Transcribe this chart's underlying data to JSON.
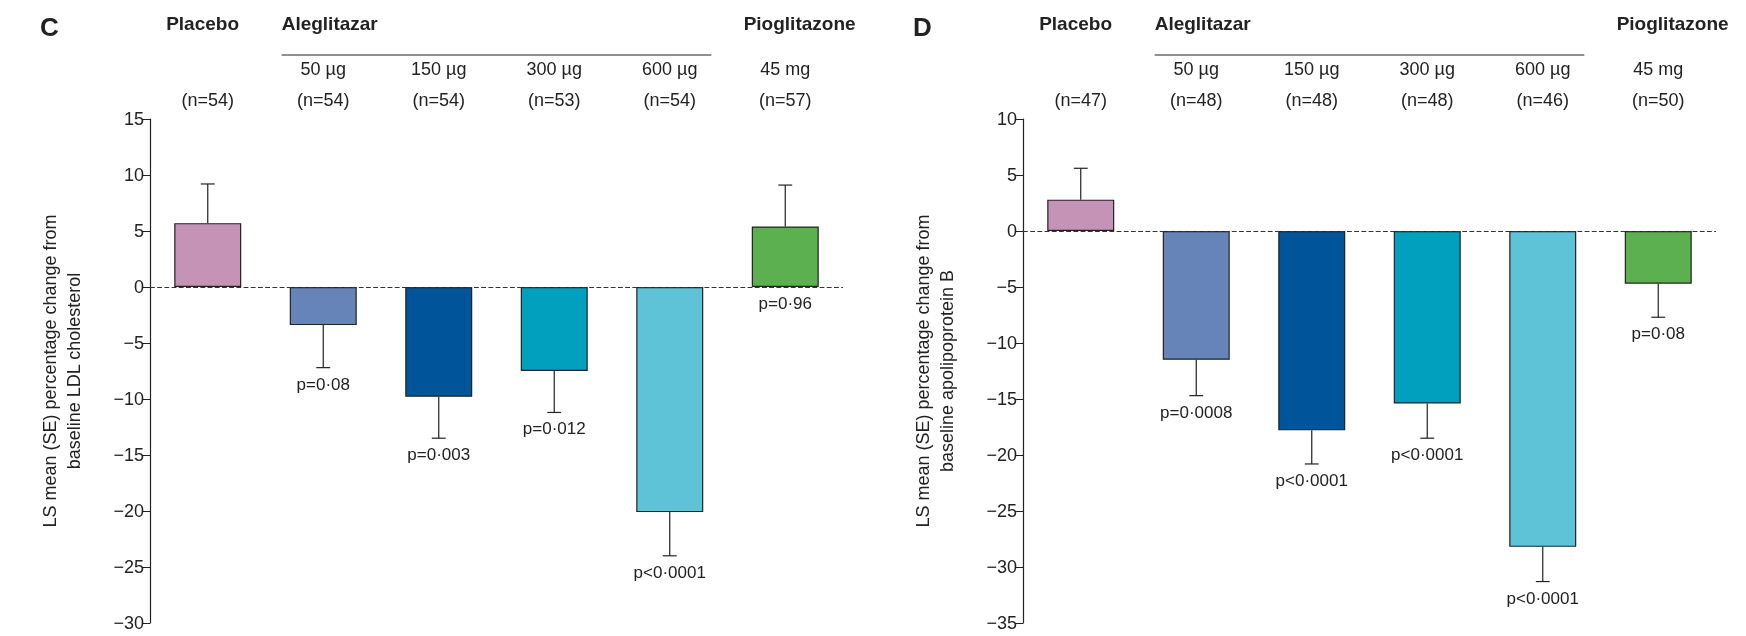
{
  "chart_data": [
    {
      "type": "bar",
      "title": "C",
      "ylabel": "LS mean (SE) percentage change from\nbaseline LDL cholesterol",
      "categories": [
        "(n=54)",
        "50 µg\n(n=54)",
        "150 µg\n(n=54)",
        "300 µg\n(n=53)",
        "600 µg\n(n=54)",
        "45 mg\n(n=57)"
      ],
      "values": [
        5.7,
        -3.4,
        -9.8,
        -7.5,
        -20.1,
        5.4
      ],
      "errors": [
        3.5,
        3.8,
        3.7,
        3.7,
        3.9,
        3.7
      ],
      "colors": [
        "#c493b6",
        "#6784b9",
        "#00549a",
        "#00a0be",
        "#5fc3d8",
        "#5cb050"
      ],
      "value_labels": [
        null,
        "p=0·08",
        "p=0·003",
        "p=0·012",
        "p<0·0001",
        "p=0·96"
      ],
      "annotations": [
        "Placebo",
        "Aleglitazar",
        "Pioglitazone"
      ],
      "ylim": [
        -30,
        15
      ],
      "yticks": [
        -30,
        -25,
        -20,
        -15,
        -10,
        -5,
        0,
        5,
        10,
        15
      ],
      "ref_lines": [
        {
          "axis": "y",
          "value": 0,
          "line_style": "dashed",
          "color": "#333333"
        }
      ],
      "grid": false
    },
    {
      "type": "bar",
      "title": "D",
      "ylabel": "LS mean (SE) percentage change from\nbaseline apolipoprotein B",
      "categories": [
        "(n=47)",
        "50 µg\n(n=48)",
        "150 µg\n(n=48)",
        "300 µg\n(n=48)",
        "600 µg\n(n=46)",
        "45 mg\n(n=50)"
      ],
      "values": [
        2.8,
        -11.5,
        -17.8,
        -15.4,
        -28.2,
        -4.7
      ],
      "errors": [
        2.8,
        3.2,
        3.0,
        3.1,
        3.1,
        3.0
      ],
      "colors": [
        "#c493b6",
        "#6784b9",
        "#00549a",
        "#00a0be",
        "#5fc3d8",
        "#5cb050"
      ],
      "value_labels": [
        null,
        "p=0·0008",
        "p<0·0001",
        "p<0·0001",
        "p<0·0001",
        "p=0·08"
      ],
      "annotations": [
        "Placebo",
        "Aleglitazar",
        "Pioglitazone"
      ],
      "ylim": [
        -35,
        10
      ],
      "yticks": [
        -35,
        -30,
        -25,
        -20,
        -15,
        -10,
        -5,
        0,
        5,
        10
      ],
      "ref_lines": [
        {
          "axis": "y",
          "value": 0,
          "line_style": "dashed",
          "color": "#333333"
        }
      ],
      "grid": false
    }
  ]
}
